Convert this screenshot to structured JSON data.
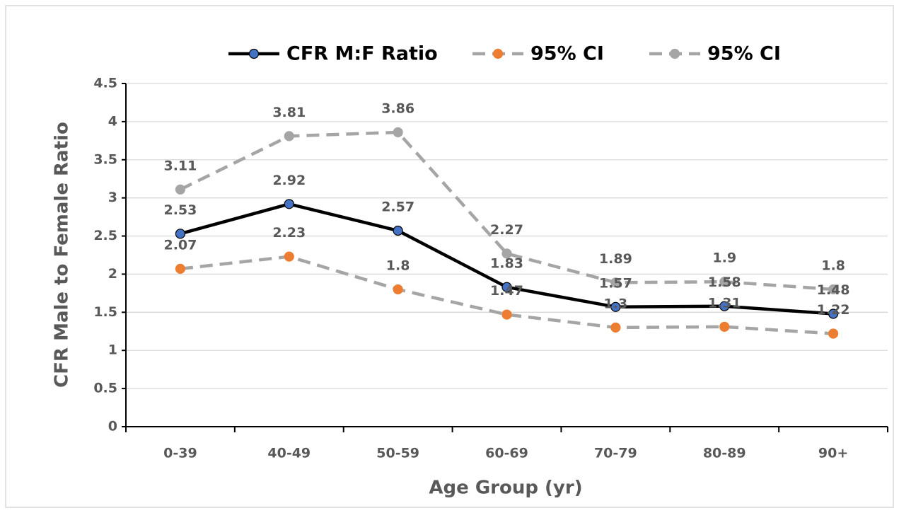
{
  "chart_data": {
    "type": "line",
    "x_label": "Age Group (yr)",
    "y_label": "CFR Male to Female Ratio",
    "categories": [
      "0-39",
      "40-49",
      "50-59",
      "60-69",
      "70-79",
      "80-89",
      "90+"
    ],
    "series": [
      {
        "name": "CFR M:F Ratio",
        "color": "#000000",
        "marker_color": "#4472c4",
        "line_style": "solid",
        "values": [
          2.53,
          2.92,
          2.57,
          1.83,
          1.57,
          1.58,
          1.48
        ]
      },
      {
        "name": "95% CI",
        "color": "#a5a5a5",
        "marker_color": "#ed7d31",
        "line_style": "dashed",
        "values": [
          2.07,
          2.23,
          1.8,
          1.47,
          1.3,
          1.31,
          1.22
        ]
      },
      {
        "name": "95% CI",
        "color": "#a5a5a5",
        "marker_color": "#a5a5a5",
        "line_style": "dashed",
        "values": [
          3.11,
          3.81,
          3.86,
          2.27,
          1.89,
          1.9,
          1.8
        ]
      }
    ],
    "ylim": [
      0,
      4.5
    ],
    "yticks": [
      0,
      0.5,
      1,
      1.5,
      2,
      2.5,
      3,
      3.5,
      4,
      4.5
    ],
    "grid": true,
    "legend": "top",
    "data_labels": true
  }
}
